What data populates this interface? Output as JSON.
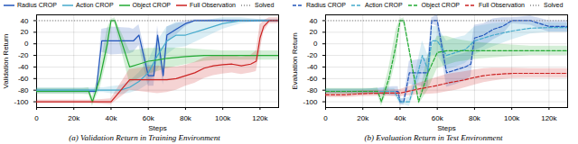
{
  "chart_data": [
    {
      "type": "line",
      "title": "(a) Validation Return in Training Environment",
      "xlabel": "Steps",
      "ylabel": "Validation Return",
      "xlim": [
        0,
        130000
      ],
      "ylim": [
        -110,
        50
      ],
      "xticks": [
        0,
        {
          "value": 20000,
          "label": "20k"
        },
        {
          "value": 40000,
          "label": "40k"
        },
        {
          "value": 60000,
          "label": "60k"
        },
        {
          "value": 80000,
          "label": "80k"
        },
        {
          "value": 100000,
          "label": "100k"
        },
        {
          "value": 120000,
          "label": "120k"
        }
      ],
      "yticks": [
        -100,
        -80,
        -60,
        -40,
        -20,
        0,
        20,
        40
      ],
      "grid": true,
      "legend": "top",
      "series": [
        {
          "name": "Radius CROP",
          "color": "#2255bb",
          "line_style": "solid",
          "x": [
            0,
            15000,
            20000,
            28000,
            30000,
            32000,
            35000,
            38000,
            40000,
            50000,
            52000,
            55000,
            60000,
            63000,
            65000,
            68000,
            70000,
            75000,
            80000,
            85000,
            95000,
            100000,
            110000,
            120000,
            130000
          ],
          "values": [
            -82,
            -82,
            -82,
            -82,
            -82,
            -82,
            5,
            5,
            5,
            5,
            5,
            15,
            -55,
            -55,
            15,
            -55,
            15,
            25,
            35,
            40,
            40,
            40,
            40,
            40,
            40
          ],
          "std": [
            4,
            4,
            4,
            4,
            4,
            4,
            20,
            22,
            24,
            22,
            20,
            18,
            18,
            18,
            16,
            16,
            14,
            10,
            5,
            2,
            2,
            2,
            2,
            2,
            2
          ]
        },
        {
          "name": "Action CROP",
          "color": "#44aacc",
          "line_style": "solid",
          "x": [
            0,
            20000,
            30000,
            33000,
            36000,
            40000,
            45000,
            50000,
            55000,
            60000,
            65000,
            70000,
            75000,
            80000,
            90000,
            100000,
            110000,
            120000,
            130000
          ],
          "values": [
            -80,
            -80,
            -80,
            -80,
            -80,
            -80,
            -80,
            -75,
            -65,
            -50,
            -20,
            5,
            15,
            15,
            25,
            35,
            40,
            40,
            40
          ],
          "std": [
            4,
            4,
            4,
            4,
            4,
            6,
            8,
            10,
            15,
            20,
            25,
            24,
            22,
            20,
            15,
            10,
            5,
            2,
            2
          ]
        },
        {
          "name": "Object CROP",
          "color": "#22aa33",
          "line_style": "solid",
          "x": [
            0,
            15000,
            20000,
            25000,
            28000,
            30000,
            32000,
            34000,
            36000,
            38000,
            40000,
            42000,
            50000,
            55000,
            60000,
            65000,
            70000,
            80000,
            90000,
            100000,
            110000,
            120000,
            130000
          ],
          "values": [
            -82,
            -82,
            -82,
            -82,
            -82,
            -100,
            -80,
            -60,
            -30,
            0,
            40,
            40,
            -40,
            -35,
            -30,
            -28,
            -25,
            -22,
            -20,
            -20,
            -20,
            -20,
            -20
          ],
          "std": [
            5,
            5,
            5,
            5,
            6,
            8,
            12,
            18,
            22,
            26,
            2,
            5,
            28,
            25,
            22,
            20,
            18,
            14,
            10,
            8,
            8,
            8,
            8
          ]
        },
        {
          "name": "Full Observation",
          "color": "#cc2222",
          "line_style": "solid",
          "x": [
            0,
            20000,
            30000,
            40000,
            50000,
            55000,
            60000,
            65000,
            70000,
            75000,
            80000,
            85000,
            90000,
            95000,
            100000,
            105000,
            110000,
            115000,
            118000,
            120000,
            122000,
            125000,
            130000
          ],
          "values": [
            -100,
            -100,
            -100,
            -100,
            -62,
            -62,
            -62,
            -62,
            -62,
            -60,
            -55,
            -50,
            -42,
            -38,
            -36,
            -35,
            -38,
            -35,
            -30,
            10,
            30,
            40,
            40
          ],
          "std": [
            3,
            3,
            3,
            5,
            18,
            20,
            22,
            24,
            22,
            20,
            18,
            18,
            18,
            17,
            16,
            15,
            15,
            15,
            18,
            22,
            10,
            5,
            5
          ]
        },
        {
          "name": "Solved",
          "type": "hline",
          "color": "#888888",
          "line_style": "dotted",
          "values": [
            40
          ]
        }
      ]
    },
    {
      "type": "line",
      "title": "(b) Evaluation Return in Test Environment",
      "xlabel": "Steps",
      "ylabel": "Evaluation Return",
      "xlim": [
        0,
        130000
      ],
      "ylim": [
        -110,
        50
      ],
      "xticks": [
        0,
        {
          "value": 20000,
          "label": "20k"
        },
        {
          "value": 40000,
          "label": "40k"
        },
        {
          "value": 60000,
          "label": "60k"
        },
        {
          "value": 80000,
          "label": "80k"
        },
        {
          "value": 100000,
          "label": "100k"
        },
        {
          "value": 120000,
          "label": "120k"
        }
      ],
      "yticks": [
        -100,
        -80,
        -60,
        -40,
        -20,
        0,
        20,
        40
      ],
      "grid": true,
      "legend": "top",
      "series": [
        {
          "name": "Radius CROP",
          "color": "#2255bb",
          "line_style": "dashed",
          "x": [
            0,
            20000,
            28000,
            30000,
            33000,
            36000,
            39000,
            40000,
            41000,
            42000,
            45000,
            55000,
            57000,
            60000,
            65000,
            70000,
            75000,
            78000,
            80000,
            85000,
            90000,
            95000,
            100000,
            110000,
            120000,
            130000
          ],
          "values": [
            -82,
            -82,
            -82,
            -82,
            -82,
            -82,
            -82,
            -100,
            -100,
            -100,
            -50,
            -50,
            40,
            40,
            -50,
            -45,
            -40,
            -35,
            10,
            15,
            25,
            30,
            40,
            40,
            30,
            30
          ],
          "std": [
            4,
            4,
            5,
            6,
            7,
            8,
            8,
            5,
            5,
            6,
            20,
            25,
            5,
            10,
            25,
            25,
            24,
            22,
            22,
            20,
            18,
            15,
            5,
            8,
            10,
            10
          ]
        },
        {
          "name": "Action CROP",
          "color": "#44aacc",
          "line_style": "dashed",
          "x": [
            0,
            20000,
            28000,
            30000,
            33000,
            35000,
            37000,
            40000,
            42000,
            45000,
            50000,
            52000,
            55000,
            57000,
            60000,
            65000,
            70000,
            75000,
            80000,
            85000,
            90000,
            100000,
            110000,
            120000,
            130000
          ],
          "values": [
            -82,
            -82,
            -82,
            -82,
            -82,
            -82,
            -82,
            -100,
            -100,
            -100,
            -45,
            -20,
            -45,
            5,
            5,
            -20,
            -15,
            -10,
            5,
            10,
            15,
            22,
            27,
            28,
            28
          ],
          "std": [
            4,
            4,
            5,
            5,
            5,
            5,
            5,
            5,
            5,
            8,
            20,
            25,
            25,
            25,
            25,
            25,
            25,
            24,
            24,
            22,
            20,
            15,
            10,
            8,
            8
          ]
        },
        {
          "name": "Object CROP",
          "color": "#22aa33",
          "line_style": "dashed",
          "x": [
            0,
            15000,
            20000,
            25000,
            28000,
            30000,
            32000,
            34000,
            36000,
            38000,
            40000,
            42000,
            50000,
            55000,
            60000,
            65000,
            70000,
            80000,
            90000,
            100000,
            110000,
            120000,
            130000
          ],
          "values": [
            -82,
            -82,
            -82,
            -82,
            -82,
            -100,
            -80,
            -60,
            -30,
            0,
            40,
            40,
            -100,
            -50,
            -15,
            -12,
            -12,
            -12,
            -12,
            -12,
            -12,
            -12,
            -12
          ],
          "std": [
            5,
            5,
            5,
            5,
            6,
            8,
            12,
            18,
            22,
            26,
            2,
            5,
            5,
            30,
            28,
            25,
            20,
            15,
            12,
            10,
            8,
            8,
            8
          ]
        },
        {
          "name": "Full Observation",
          "color": "#cc2222",
          "line_style": "dashed",
          "x": [
            0,
            10000,
            20000,
            30000,
            40000,
            50000,
            55000,
            60000,
            65000,
            70000,
            75000,
            80000,
            85000,
            90000,
            95000,
            100000,
            110000,
            120000,
            130000
          ],
          "values": [
            -88,
            -88,
            -86,
            -85,
            -85,
            -78,
            -75,
            -72,
            -68,
            -65,
            -62,
            -58,
            -55,
            -53,
            -52,
            -51,
            -51,
            -51,
            -51
          ],
          "std": [
            5,
            5,
            5,
            5,
            6,
            10,
            12,
            14,
            15,
            15,
            14,
            13,
            12,
            11,
            10,
            9,
            8,
            8,
            8
          ]
        },
        {
          "name": "Solved",
          "type": "hline",
          "color": "#888888",
          "line_style": "dotted",
          "values": [
            40
          ]
        }
      ]
    }
  ]
}
